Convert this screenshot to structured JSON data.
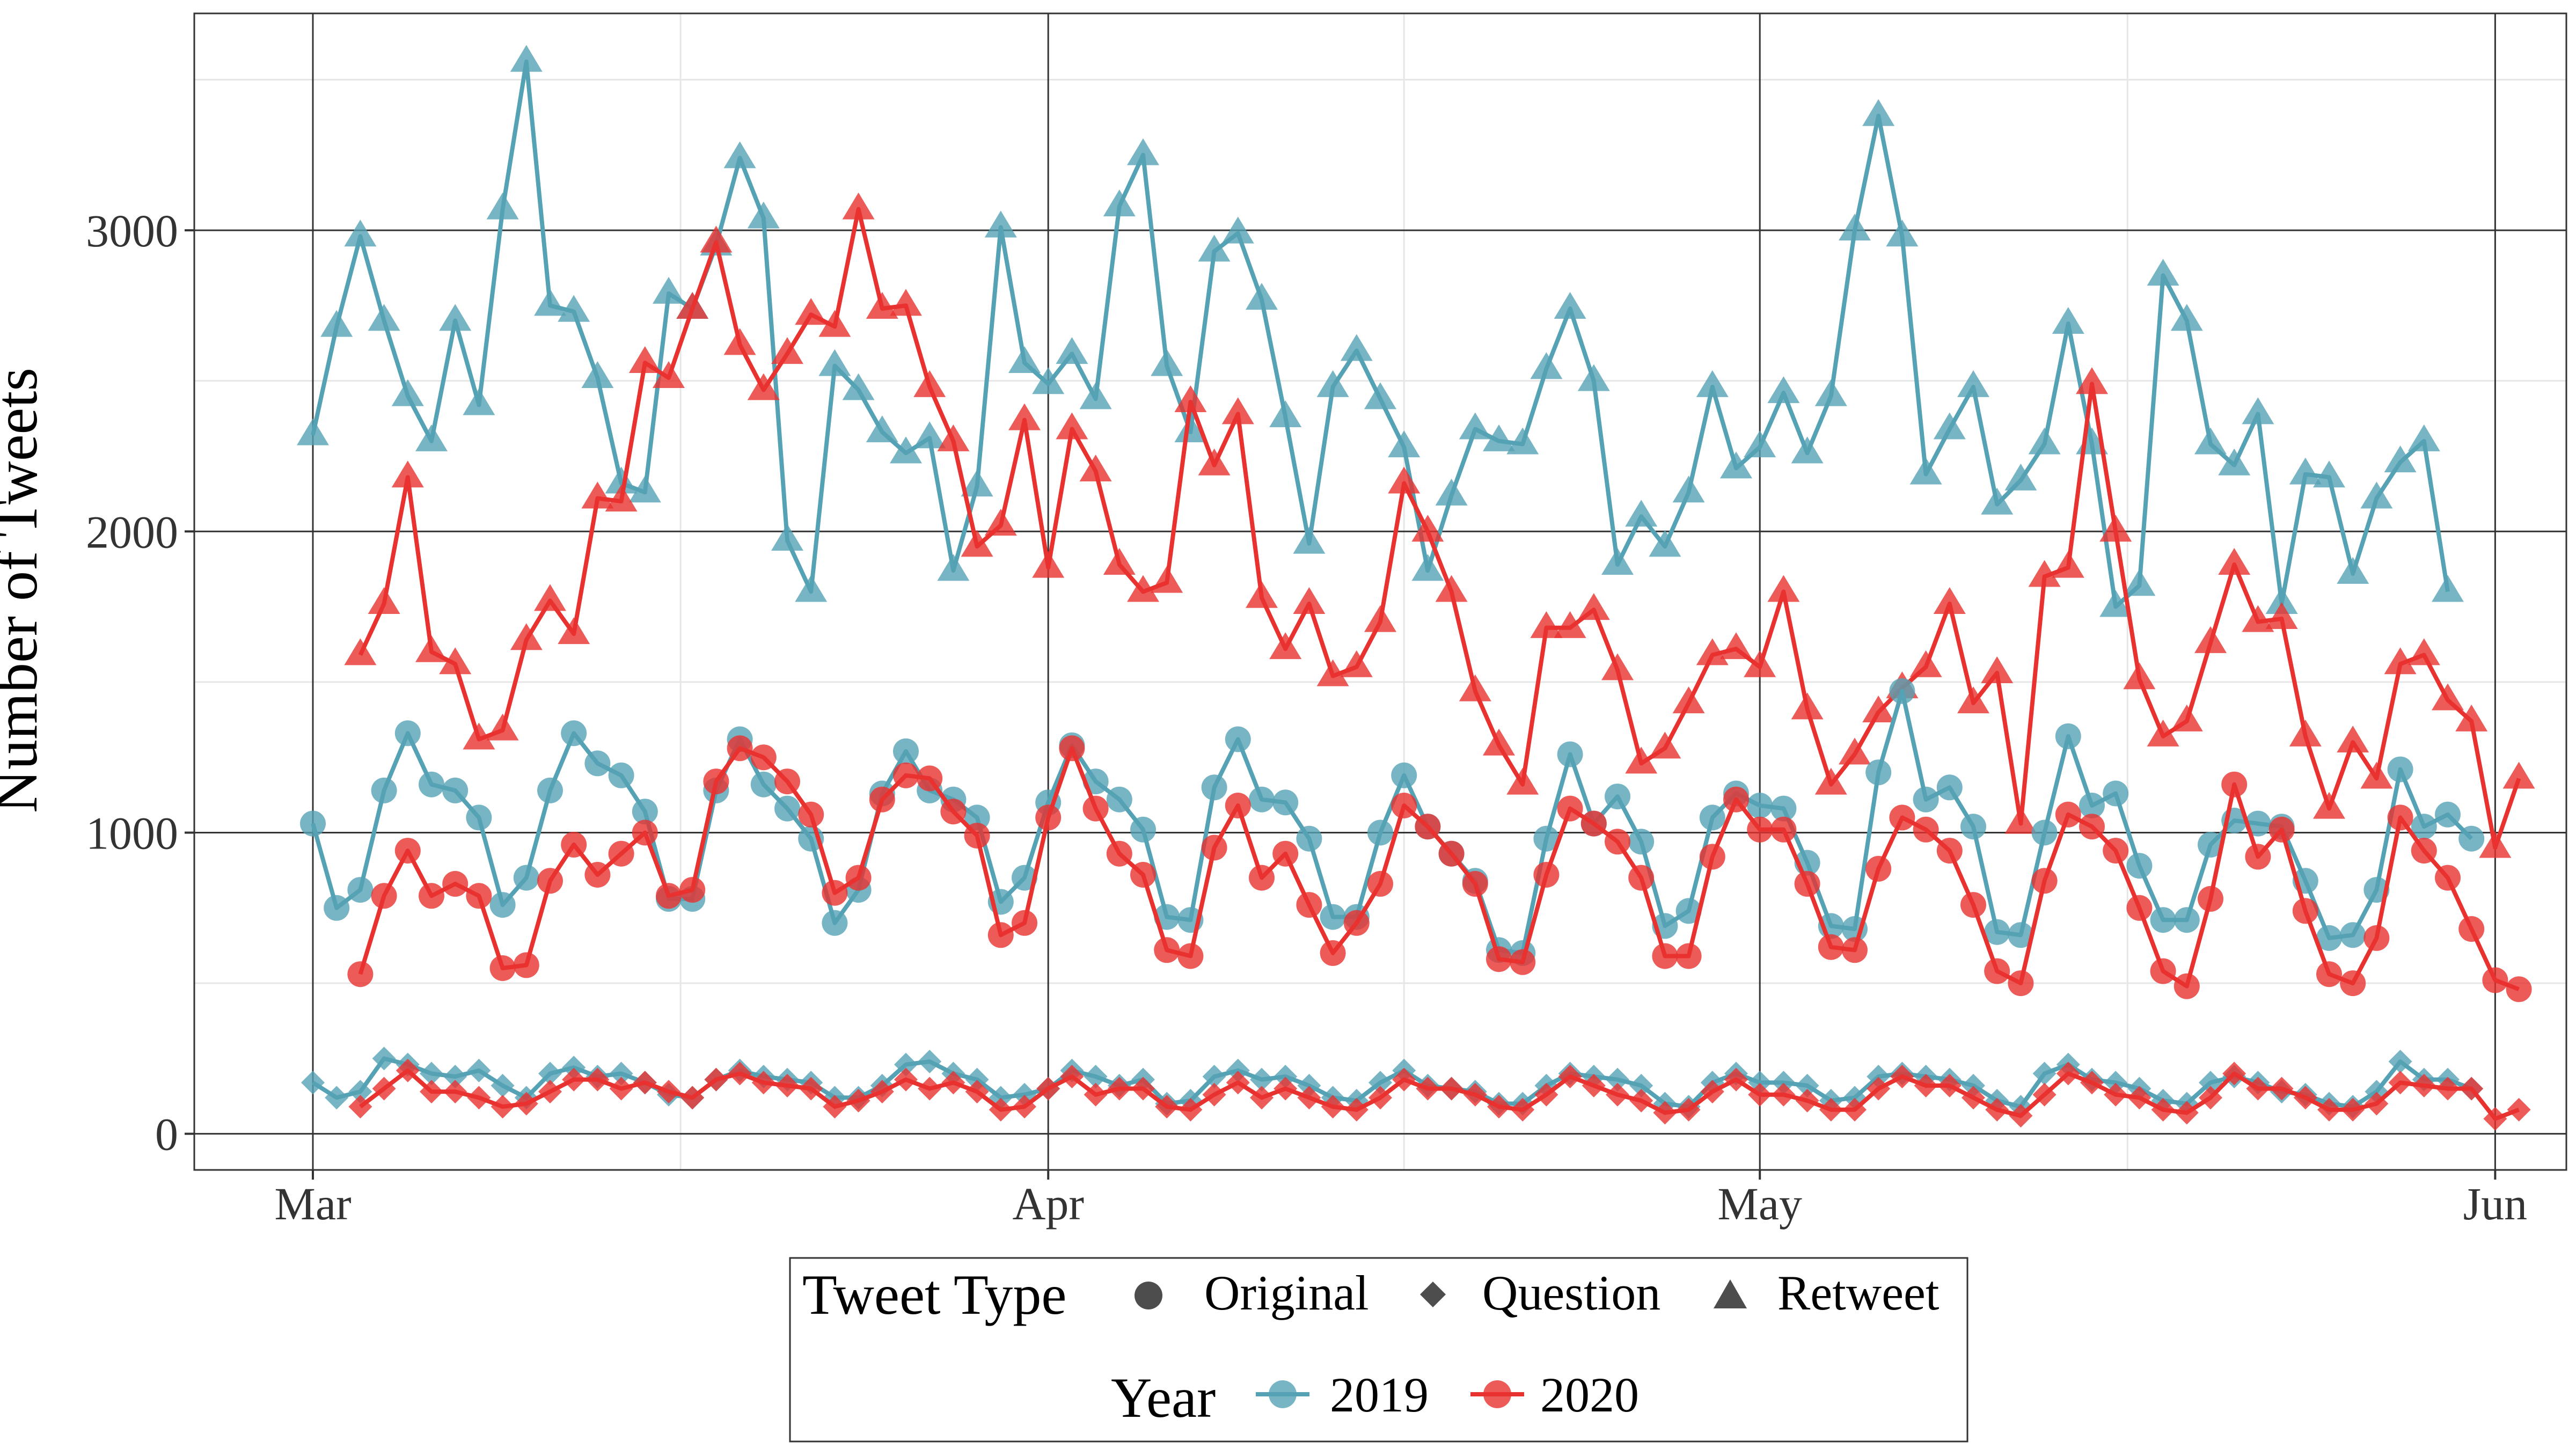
{
  "colors": {
    "y2019": "#56A2B5",
    "y2020": "#E8322F",
    "legend_key": "#4D4D4D",
    "grid_major": "#333333",
    "grid_minor": "#E6E6E6"
  },
  "legend": {
    "type_title": "Tweet Type",
    "type_items": [
      {
        "label": "Original",
        "shape": "circle"
      },
      {
        "label": "Question",
        "shape": "diamond"
      },
      {
        "label": "Retweet",
        "shape": "triangle"
      }
    ],
    "year_title": "Year",
    "year_items": [
      {
        "label": "2019",
        "color": "#56A2B5"
      },
      {
        "label": "2020",
        "color": "#E8322F"
      }
    ]
  },
  "chart_data": {
    "type": "line",
    "xlabel": "",
    "ylabel": "Number of Tweets",
    "x_axis": {
      "unit": "day",
      "start": "Mar 1",
      "range": [
        -5,
        95
      ],
      "ticks": [
        {
          "day": 0,
          "label": "Mar"
        },
        {
          "day": 31,
          "label": "Apr"
        },
        {
          "day": 61,
          "label": "May"
        },
        {
          "day": 92,
          "label": "Jun"
        }
      ]
    },
    "y_axis": {
      "range": [
        -120,
        3720
      ],
      "ticks": [
        0,
        1000,
        2000,
        3000
      ],
      "minor_ticks": [
        500,
        1500,
        2500,
        3500
      ]
    },
    "grid": true,
    "legend_position": "bottom",
    "series": [
      {
        "name": "2019",
        "tweet_type": "Retweet",
        "shape": "triangle",
        "color": "#56A2B5",
        "start_day": 0,
        "values": [
          2320,
          2680,
          2980,
          2700,
          2450,
          2300,
          2700,
          2420,
          3070,
          3560,
          2750,
          2730,
          2510,
          2160,
          2130,
          2790,
          2740,
          2950,
          3240,
          3040,
          1970,
          1800,
          2550,
          2470,
          2330,
          2260,
          2310,
          1870,
          2150,
          3010,
          2560,
          2490,
          2590,
          2440,
          3080,
          3250,
          2550,
          2330,
          2930,
          2990,
          2770,
          2380,
          1960,
          2480,
          2600,
          2440,
          2280,
          1870,
          2120,
          2340,
          2300,
          2290,
          2540,
          2740,
          2500,
          1890,
          2050,
          1950,
          2130,
          2480,
          2210,
          2280,
          2460,
          2260,
          2450,
          3000,
          3380,
          2980,
          2190,
          2340,
          2480,
          2090,
          2170,
          2290,
          2690,
          2290,
          1750,
          1820,
          2850,
          2700,
          2290,
          2220,
          2390,
          1760,
          2190,
          2180,
          1860,
          2110,
          2230,
          2300,
          1800
        ]
      },
      {
        "name": "2020",
        "tweet_type": "Retweet",
        "shape": "triangle",
        "color": "#E8322F",
        "start_day": 2,
        "values": [
          1590,
          1760,
          2180,
          1600,
          1560,
          1310,
          1340,
          1640,
          1770,
          1660,
          2110,
          2100,
          2560,
          2510,
          2740,
          2960,
          2620,
          2470,
          2590,
          2720,
          2680,
          3070,
          2740,
          2750,
          2480,
          2300,
          1950,
          2020,
          2370,
          1880,
          2340,
          2200,
          1890,
          1800,
          1830,
          2430,
          2220,
          2390,
          1780,
          1610,
          1760,
          1520,
          1550,
          1700,
          2160,
          2000,
          1800,
          1470,
          1290,
          1160,
          1680,
          1680,
          1740,
          1540,
          1230,
          1280,
          1430,
          1590,
          1610,
          1550,
          1800,
          1410,
          1160,
          1260,
          1400,
          1480,
          1550,
          1760,
          1430,
          1530,
          1030,
          1850,
          1880,
          2490,
          2000,
          1510,
          1320,
          1370,
          1630,
          1890,
          1700,
          1710,
          1320,
          1080,
          1300,
          1180,
          1560,
          1590,
          1440,
          1370,
          950,
          1180
        ]
      },
      {
        "name": "2019",
        "tweet_type": "Original",
        "shape": "circle",
        "color": "#56A2B5",
        "start_day": 0,
        "values": [
          1030,
          750,
          810,
          1140,
          1330,
          1160,
          1140,
          1050,
          760,
          850,
          1140,
          1330,
          1230,
          1190,
          1070,
          780,
          780,
          1140,
          1310,
          1160,
          1080,
          980,
          700,
          810,
          1130,
          1270,
          1140,
          1110,
          1050,
          770,
          850,
          1100,
          1290,
          1170,
          1110,
          1010,
          720,
          710,
          1150,
          1310,
          1110,
          1100,
          980,
          720,
          720,
          1000,
          1190,
          1020,
          930,
          840,
          610,
          600,
          980,
          1260,
          1030,
          1120,
          970,
          690,
          740,
          1050,
          1130,
          1090,
          1080,
          900,
          690,
          680,
          1200,
          1470,
          1110,
          1150,
          1020,
          670,
          660,
          1000,
          1320,
          1090,
          1130,
          890,
          710,
          710,
          960,
          1040,
          1030,
          1020,
          840,
          650,
          660,
          810,
          1210,
          1020,
          1060,
          980
        ]
      },
      {
        "name": "2020",
        "tweet_type": "Original",
        "shape": "circle",
        "color": "#E8322F",
        "start_day": 2,
        "values": [
          530,
          790,
          940,
          790,
          830,
          790,
          550,
          560,
          840,
          960,
          860,
          930,
          1000,
          790,
          810,
          1170,
          1280,
          1250,
          1170,
          1060,
          800,
          850,
          1110,
          1190,
          1180,
          1070,
          990,
          660,
          700,
          1050,
          1280,
          1080,
          930,
          860,
          610,
          590,
          950,
          1090,
          850,
          930,
          760,
          600,
          700,
          830,
          1090,
          1020,
          930,
          830,
          580,
          570,
          860,
          1080,
          1030,
          970,
          850,
          590,
          590,
          920,
          1110,
          1010,
          1010,
          830,
          620,
          610,
          880,
          1050,
          1010,
          940,
          760,
          540,
          500,
          840,
          1060,
          1020,
          940,
          750,
          540,
          490,
          780,
          1160,
          920,
          1010,
          740,
          530,
          500,
          650,
          1050,
          940,
          850,
          680,
          510,
          480
        ]
      },
      {
        "name": "2019",
        "tweet_type": "Question",
        "shape": "diamond",
        "color": "#56A2B5",
        "start_day": 0,
        "values": [
          170,
          120,
          140,
          250,
          230,
          200,
          190,
          210,
          160,
          120,
          200,
          220,
          190,
          200,
          170,
          130,
          120,
          180,
          210,
          190,
          180,
          170,
          120,
          120,
          160,
          230,
          240,
          200,
          180,
          120,
          130,
          150,
          210,
          190,
          160,
          180,
          100,
          110,
          190,
          210,
          180,
          190,
          160,
          120,
          110,
          170,
          210,
          160,
          150,
          140,
          100,
          100,
          160,
          200,
          190,
          180,
          160,
          100,
          90,
          170,
          200,
          170,
          170,
          160,
          110,
          120,
          190,
          200,
          190,
          180,
          160,
          110,
          90,
          200,
          230,
          180,
          170,
          150,
          110,
          100,
          170,
          190,
          170,
          140,
          130,
          100,
          90,
          140,
          240,
          180,
          180,
          150
        ]
      },
      {
        "name": "2020",
        "tweet_type": "Question",
        "shape": "diamond",
        "color": "#E8322F",
        "start_day": 2,
        "values": [
          90,
          150,
          210,
          140,
          140,
          120,
          90,
          100,
          140,
          180,
          180,
          150,
          170,
          140,
          120,
          180,
          200,
          170,
          160,
          150,
          90,
          110,
          140,
          180,
          150,
          170,
          140,
          80,
          90,
          150,
          190,
          130,
          150,
          150,
          90,
          80,
          130,
          170,
          120,
          150,
          120,
          90,
          80,
          120,
          180,
          150,
          150,
          130,
          90,
          80,
          130,
          190,
          160,
          130,
          110,
          70,
          80,
          140,
          180,
          130,
          130,
          110,
          80,
          80,
          150,
          190,
          160,
          160,
          120,
          80,
          60,
          130,
          200,
          170,
          130,
          120,
          80,
          70,
          120,
          200,
          150,
          150,
          120,
          80,
          80,
          100,
          170,
          160,
          150,
          150,
          50,
          80
        ]
      }
    ]
  }
}
